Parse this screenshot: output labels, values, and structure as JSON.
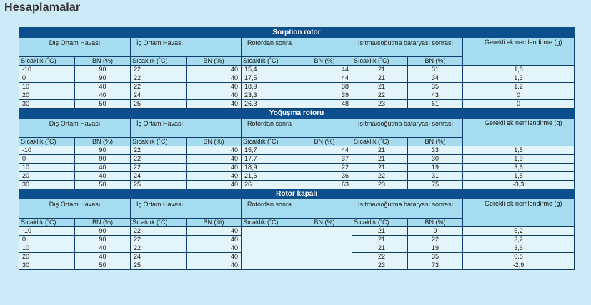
{
  "title": "Hesaplamalar",
  "headers": {
    "dis": "Dış Ortam Havası",
    "ic": "İç Ortam Havası",
    "rotor_sonra": "Rotordan sonra",
    "isitma": "Isıtma/soğutma bataryası sonrası",
    "ek": "Gerekli ek nemlendirme (g)",
    "sicaklik": "Sıcaklık (˚C)",
    "bn": "BN (%)"
  },
  "sections": [
    {
      "title": "Sorption rotor",
      "rows": [
        [
          "-10",
          "90",
          "22",
          "40",
          "15,4",
          "44",
          "21",
          "31",
          "1,8"
        ],
        [
          "0",
          "90",
          "22",
          "40",
          "17,5",
          "44",
          "21",
          "34",
          "1,3"
        ],
        [
          "10",
          "40",
          "22",
          "40",
          "18,9",
          "38",
          "21",
          "35",
          "1,2"
        ],
        [
          "20",
          "40",
          "24",
          "40",
          "23,3",
          "39",
          "22",
          "43",
          "0"
        ],
        [
          "30",
          "50",
          "25",
          "40",
          "26,3",
          "48",
          "23",
          "61",
          "0"
        ]
      ]
    },
    {
      "title": "Yoğuşma rotoru",
      "rows": [
        [
          "-10",
          "90",
          "22",
          "40",
          "15,7",
          "44",
          "21",
          "33",
          "1,5"
        ],
        [
          "0",
          "90",
          "22",
          "40",
          "17,7",
          "37",
          "21",
          "30",
          "1,9"
        ],
        [
          "10",
          "40",
          "22",
          "40",
          "18,9",
          "22",
          "21",
          "19",
          "3,6"
        ],
        [
          "20",
          "40",
          "24",
          "40",
          "21,6",
          "36",
          "22",
          "31",
          "1,5"
        ],
        [
          "30",
          "50",
          "25",
          "40",
          "26",
          "63",
          "23",
          "75",
          "-3,3"
        ]
      ]
    },
    {
      "title": "Rotor kapalı",
      "rows": [
        [
          "-10",
          "90",
          "22",
          "40",
          "",
          "",
          "21",
          "9",
          "5,2"
        ],
        [
          "0",
          "90",
          "22",
          "40",
          "",
          "",
          "21",
          "22",
          "3,2"
        ],
        [
          "10",
          "40",
          "22",
          "40",
          "",
          "",
          "21",
          "19",
          "3,6"
        ],
        [
          "20",
          "40",
          "24",
          "40",
          "",
          "",
          "22",
          "35",
          "0,8"
        ],
        [
          "30",
          "50",
          "25",
          "40",
          "",
          "",
          "23",
          "73",
          "-2,9"
        ]
      ]
    }
  ]
}
